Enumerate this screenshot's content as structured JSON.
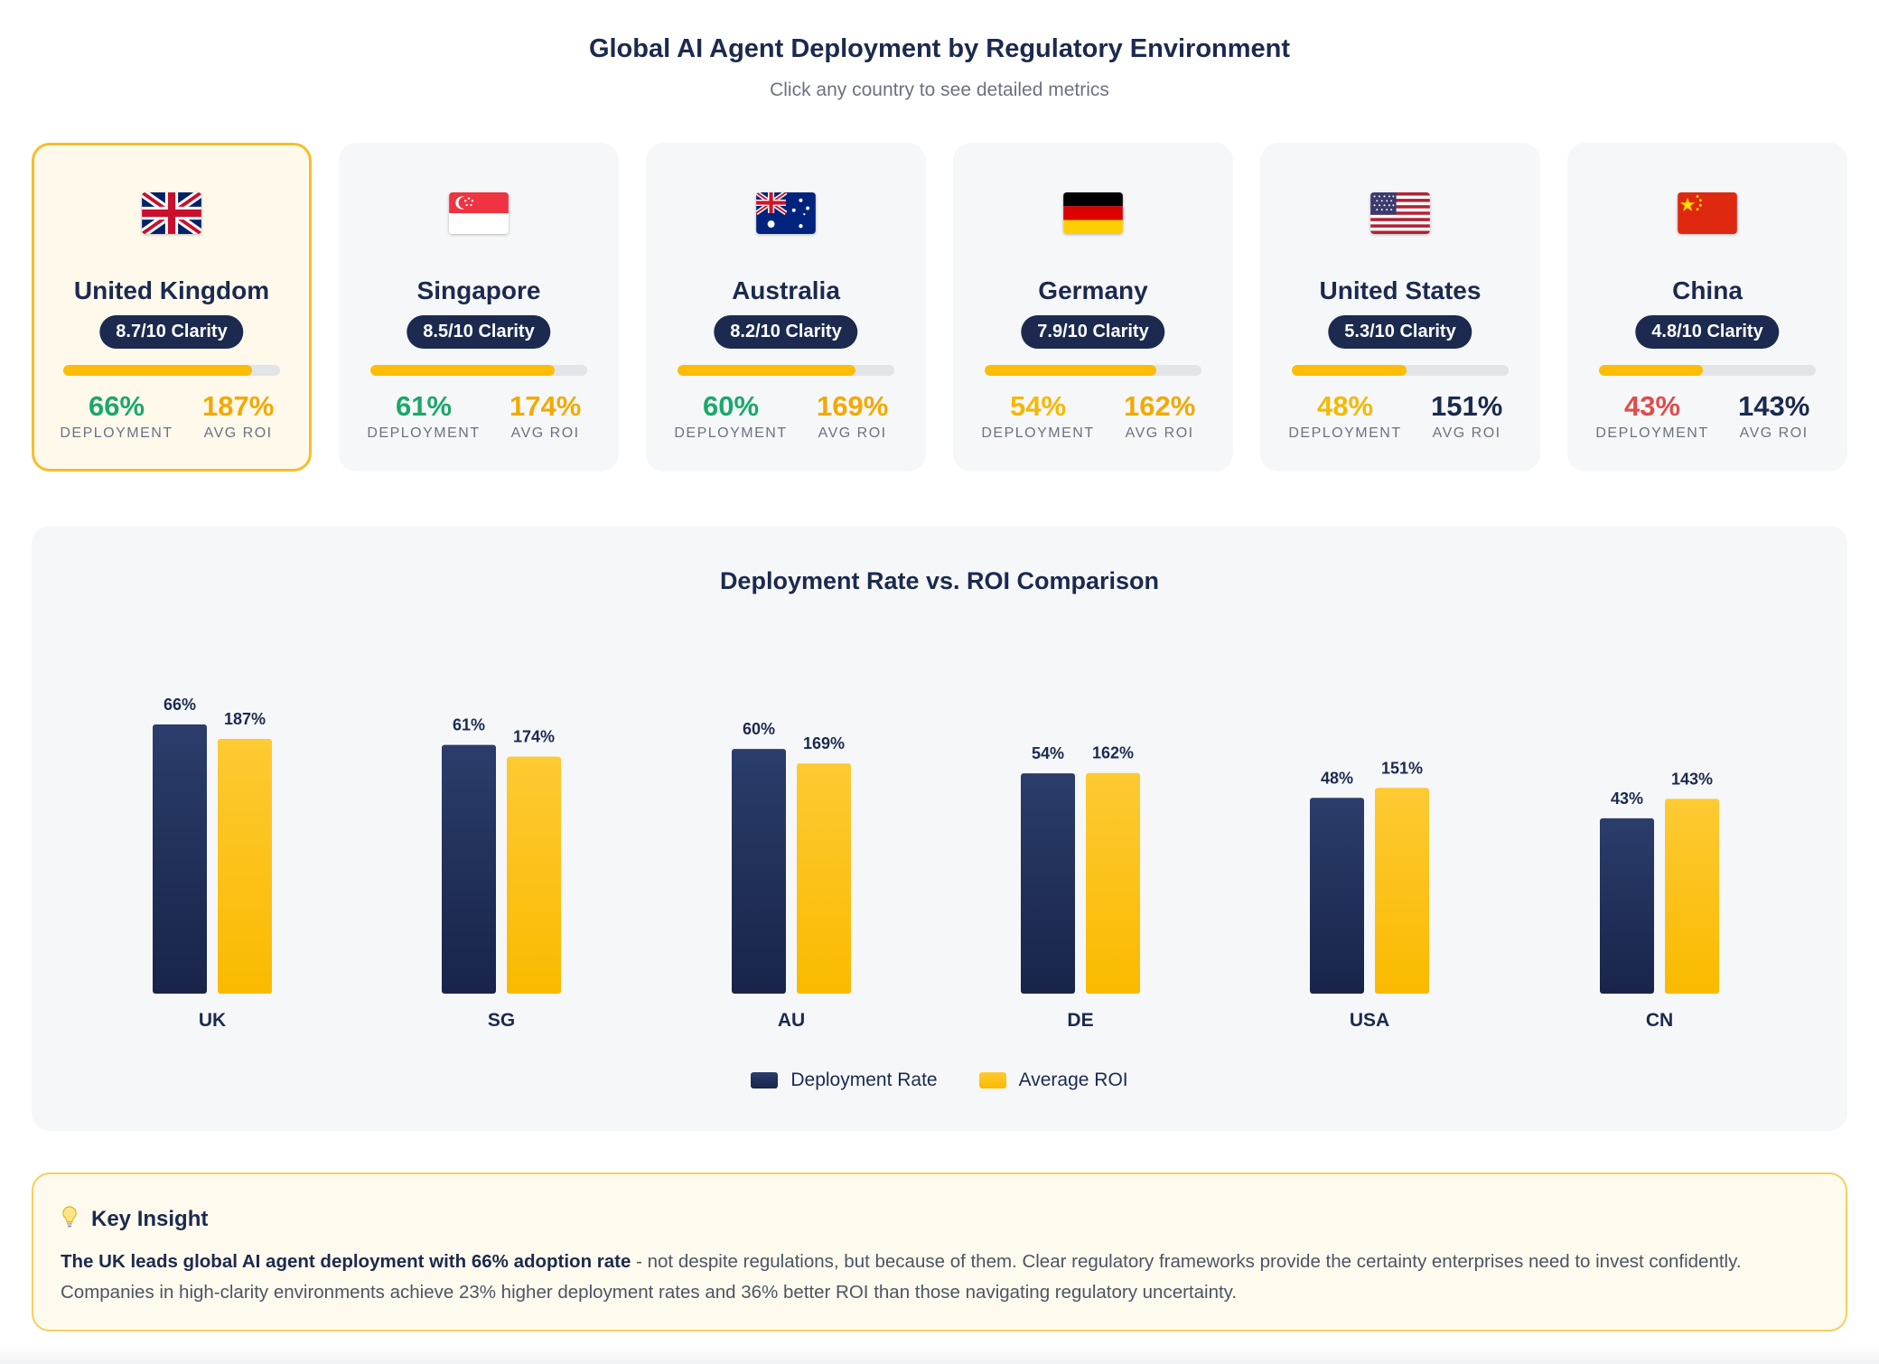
{
  "header": {
    "title": "Global AI Agent Deployment by Regulatory Environment",
    "subtitle": "Click any country to see detailed metrics"
  },
  "metric_labels": {
    "deployment": "DEPLOYMENT",
    "roi": "AVG ROI"
  },
  "countries": [
    {
      "name": "United Kingdom",
      "flag": "uk-flag-icon",
      "clarity_label": "8.7/10 Clarity",
      "clarity": 8.7,
      "deployment": "66%",
      "roi": "187%",
      "deployment_color": "#1aa86b",
      "roi_color": "#f2a900",
      "selected": true
    },
    {
      "name": "Singapore",
      "flag": "singapore-flag-icon",
      "clarity_label": "8.5/10 Clarity",
      "clarity": 8.5,
      "deployment": "61%",
      "roi": "174%",
      "deployment_color": "#1aa86b",
      "roi_color": "#f2a900",
      "selected": false
    },
    {
      "name": "Australia",
      "flag": "australia-flag-icon",
      "clarity_label": "8.2/10 Clarity",
      "clarity": 8.2,
      "deployment": "60%",
      "roi": "169%",
      "deployment_color": "#1aa86b",
      "roi_color": "#f2a900",
      "selected": false
    },
    {
      "name": "Germany",
      "flag": "germany-flag-icon",
      "clarity_label": "7.9/10 Clarity",
      "clarity": 7.9,
      "deployment": "54%",
      "roi": "162%",
      "deployment_color": "#f5b800",
      "roi_color": "#f2a900",
      "selected": false
    },
    {
      "name": "United States",
      "flag": "us-flag-icon",
      "clarity_label": "5.3/10 Clarity",
      "clarity": 5.3,
      "deployment": "48%",
      "roi": "151%",
      "deployment_color": "#f5b800",
      "roi_color": "#1b2a4e",
      "selected": false
    },
    {
      "name": "China",
      "flag": "china-flag-icon",
      "clarity_label": "4.8/10 Clarity",
      "clarity": 4.8,
      "deployment": "43%",
      "roi": "143%",
      "deployment_color": "#e04b4b",
      "roi_color": "#1b2a4e",
      "selected": false
    }
  ],
  "chart_data": {
    "type": "bar",
    "title": "Deployment Rate vs. ROI Comparison",
    "categories": [
      "UK",
      "SG",
      "AU",
      "DE",
      "USA",
      "CN"
    ],
    "series": [
      {
        "name": "Deployment Rate",
        "values": [
          66,
          61,
          60,
          54,
          48,
          43
        ],
        "labels": [
          "66%",
          "61%",
          "60%",
          "54%",
          "48%",
          "43%"
        ],
        "color": "#1b2a4e"
      },
      {
        "name": "Average ROI",
        "values": [
          187,
          174,
          169,
          162,
          151,
          143
        ],
        "labels": [
          "187%",
          "174%",
          "169%",
          "162%",
          "151%",
          "143%"
        ],
        "color": "#fbbd08"
      }
    ],
    "legend_position": "bottom-center",
    "grid": false
  },
  "insight": {
    "icon": "lightbulb-icon",
    "title": "Key Insight",
    "lead": "The UK leads global AI agent deployment with 66% adoption rate",
    "body": " - not despite regulations, but because of them. Clear regulatory frameworks provide the certainty enterprises need to invest confidently. Companies in high-clarity environments achieve 23% higher deployment rates and 36% better ROI than those navigating regulatory uncertainty."
  }
}
